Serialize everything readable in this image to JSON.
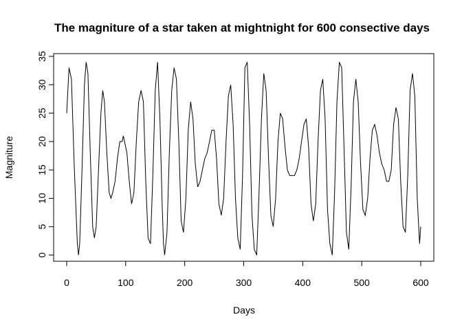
{
  "chart_data": {
    "type": "line",
    "title": "The magniture of a star taken at mightnight for 600 consective days",
    "xlabel": "Days",
    "ylabel": "Magniture",
    "xlim": [
      0,
      600
    ],
    "ylim": [
      0,
      35
    ],
    "xticks": [
      0,
      100,
      200,
      300,
      400,
      500,
      600
    ],
    "yticks": [
      0,
      5,
      10,
      15,
      20,
      25,
      30,
      35
    ],
    "grid": false,
    "line_color": "#000000",
    "x": [
      0,
      4,
      8,
      13,
      18,
      20,
      22,
      26,
      30,
      33,
      36,
      40,
      44,
      47,
      50,
      54,
      58,
      61,
      64,
      68,
      72,
      75,
      78,
      82,
      86,
      90,
      94,
      96,
      98,
      102,
      106,
      110,
      114,
      118,
      122,
      126,
      130,
      134,
      138,
      142,
      146,
      150,
      154,
      158,
      162,
      164,
      166,
      170,
      174,
      178,
      182,
      186,
      190,
      194,
      198,
      202,
      206,
      210,
      214,
      218,
      222,
      226,
      230,
      234,
      238,
      242,
      246,
      250,
      254,
      258,
      262,
      266,
      270,
      274,
      278,
      282,
      286,
      290,
      294,
      298,
      302,
      306,
      310,
      314,
      318,
      322,
      326,
      330,
      334,
      338,
      342,
      346,
      350,
      354,
      358,
      362,
      366,
      370,
      374,
      378,
      382,
      386,
      390,
      394,
      398,
      402,
      406,
      410,
      414,
      418,
      422,
      426,
      430,
      434,
      438,
      442,
      446,
      450,
      454,
      458,
      462,
      466,
      470,
      474,
      478,
      482,
      486,
      490,
      494,
      498,
      502,
      506,
      510,
      514,
      518,
      522,
      526,
      530,
      534,
      538,
      542,
      546,
      550,
      554,
      558,
      562,
      566,
      570,
      574,
      578,
      582,
      586,
      590,
      594,
      598,
      600
    ],
    "y": [
      25,
      33,
      31,
      15,
      2,
      0,
      2,
      15,
      30,
      34,
      32,
      18,
      5,
      3,
      5,
      15,
      25,
      29,
      27,
      18,
      11,
      10,
      11,
      13,
      17,
      20,
      20,
      21,
      20,
      18,
      13,
      9,
      11,
      20,
      27,
      29,
      27,
      13,
      3,
      2,
      14,
      29,
      34,
      24,
      8,
      2,
      0,
      4,
      18,
      29,
      33,
      31,
      20,
      6,
      4,
      10,
      22,
      27,
      24,
      16,
      12,
      13,
      15,
      17,
      18,
      20,
      22,
      22,
      17,
      9,
      7,
      10,
      20,
      28,
      30,
      23,
      10,
      3,
      1,
      14,
      33,
      34,
      23,
      7,
      1,
      0,
      11,
      24,
      32,
      29,
      17,
      7,
      5,
      10,
      20,
      25,
      24,
      19,
      15,
      14,
      14,
      14,
      15,
      17,
      20,
      23,
      24,
      19,
      9,
      6,
      9,
      20,
      29,
      31,
      24,
      8,
      2,
      0,
      11,
      27,
      34,
      33,
      19,
      4,
      1,
      12,
      27,
      31,
      27,
      16,
      8,
      7,
      10,
      17,
      22,
      23,
      21,
      18,
      16,
      15,
      13,
      13,
      15,
      23,
      26,
      24,
      13,
      5,
      4,
      14,
      29,
      32,
      28,
      10,
      2,
      5
    ]
  }
}
